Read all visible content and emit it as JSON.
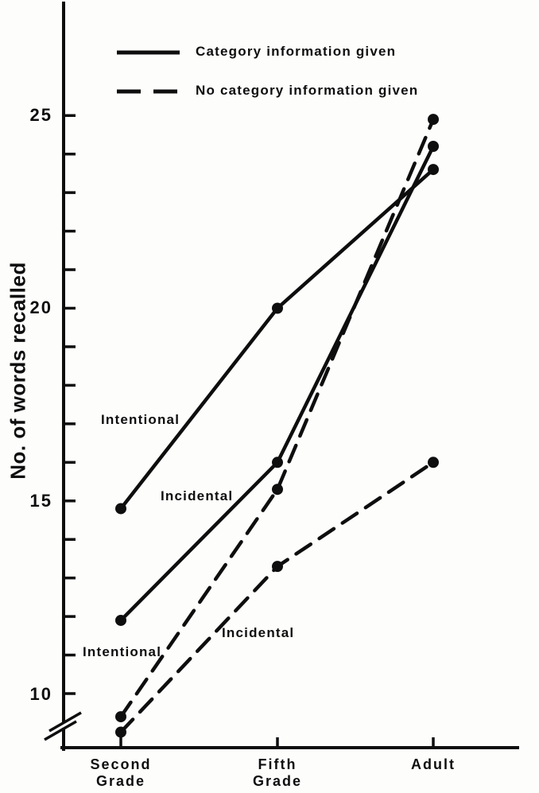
{
  "page": {
    "background": "#fdfdfc",
    "ink": "#0e0e0e"
  },
  "chart_data": {
    "type": "line",
    "title": "",
    "xlabel": "",
    "ylabel": "No. of words recalled",
    "categories": [
      [
        "Second",
        "Grade"
      ],
      [
        "Fifth",
        "Grade"
      ],
      [
        "Adult"
      ]
    ],
    "y_ticks_labeled": [
      10,
      15,
      20,
      25
    ],
    "y_minor_tick_step": 1,
    "ylim": [
      8.6,
      27.5
    ],
    "axis_break_below_first_tick": true,
    "grid": false,
    "legend": {
      "position": "top-left",
      "entries": [
        {
          "label": "Category information given",
          "style": "solid"
        },
        {
          "label": "No category information given",
          "style": "dashed"
        }
      ]
    },
    "series": [
      {
        "name": "Intentional",
        "condition": "Category information given",
        "style": "solid",
        "values": [
          14.8,
          20.0,
          23.6
        ]
      },
      {
        "name": "Incidental",
        "condition": "Category information given",
        "style": "solid",
        "values": [
          11.9,
          16.0,
          24.2
        ]
      },
      {
        "name": "Intentional",
        "condition": "No category information given",
        "style": "dashed",
        "values": [
          9.4,
          15.3,
          24.9
        ]
      },
      {
        "name": "Incidental",
        "condition": "No category information given",
        "style": "dashed",
        "values": [
          9.0,
          13.3,
          16.0
        ]
      }
    ],
    "annotations": [
      {
        "label": "Intentional",
        "series": "solid-intentional"
      },
      {
        "label": "Incidental",
        "series": "solid-incidental"
      },
      {
        "label": "Intentional",
        "series": "dashed-intentional"
      },
      {
        "label": "Incidental",
        "series": "dashed-incidental"
      }
    ],
    "colors": {
      "line": "#0e0e0e",
      "point": "#0e0e0e",
      "background": "#fdfdfc"
    },
    "marker": "filled-circle"
  }
}
